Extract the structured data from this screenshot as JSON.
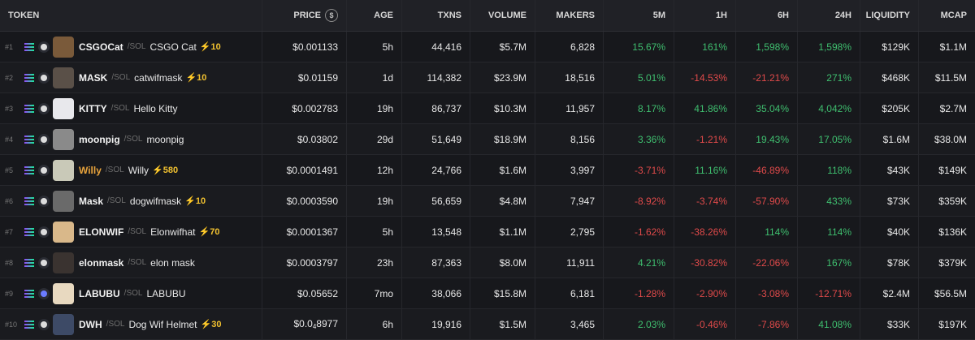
{
  "header": {
    "token": "TOKEN",
    "price": "PRICE",
    "price_icon": "dollar-icon",
    "age": "AGE",
    "txns": "TXNS",
    "volume": "VOLUME",
    "makers": "MAKERS",
    "m5": "5M",
    "h1": "1H",
    "h6": "6H",
    "h24": "24H",
    "liquidity": "LIQUIDITY",
    "mcap": "MCAP"
  },
  "rows": [
    {
      "rank": "#1",
      "symbol": "CSGOCat",
      "chain": "/SOL",
      "name": "CSGO Cat",
      "boost": "⚡10",
      "price": "$0.001133",
      "age": "5h",
      "txns": "44,416",
      "volume": "$5.7M",
      "makers": "6,828",
      "m5": "15.67%",
      "h1": "161%",
      "h6": "1,598%",
      "h24": "1,598%",
      "liquidity": "$129K",
      "mcap": "$1.1M",
      "avatar_color": "#7a5a3a"
    },
    {
      "rank": "#2",
      "symbol": "MASK",
      "chain": "/SOL",
      "name": "catwifmask",
      "boost": "⚡10",
      "price": "$0.01159",
      "age": "1d",
      "txns": "114,382",
      "volume": "$23.9M",
      "makers": "18,516",
      "m5": "5.01%",
      "h1": "-14.53%",
      "h6": "-21.21%",
      "h24": "271%",
      "liquidity": "$468K",
      "mcap": "$11.5M",
      "avatar_color": "#5a5048"
    },
    {
      "rank": "#3",
      "symbol": "KITTY",
      "chain": "/SOL",
      "name": "Hello Kitty",
      "boost": "",
      "price": "$0.002783",
      "age": "19h",
      "txns": "86,737",
      "volume": "$10.3M",
      "makers": "11,957",
      "m5": "8.17%",
      "h1": "41.86%",
      "h6": "35.04%",
      "h24": "4,042%",
      "liquidity": "$205K",
      "mcap": "$2.7M",
      "avatar_color": "#e8e8ec"
    },
    {
      "rank": "#4",
      "symbol": "moonpig",
      "chain": "/SOL",
      "name": "moonpig",
      "boost": "",
      "price": "$0.03802",
      "age": "29d",
      "txns": "51,649",
      "volume": "$18.9M",
      "makers": "8,156",
      "m5": "3.36%",
      "h1": "-1.21%",
      "h6": "19.43%",
      "h24": "17.05%",
      "liquidity": "$1.6M",
      "mcap": "$38.0M",
      "avatar_color": "#8a8a8a"
    },
    {
      "rank": "#5",
      "symbol": "Willy",
      "chain": "/SOL",
      "name": "Willy",
      "boost": "⚡580",
      "price": "$0.0001491",
      "age": "12h",
      "txns": "24,766",
      "volume": "$1.6M",
      "makers": "3,997",
      "m5": "-3.71%",
      "h1": "11.16%",
      "h6": "-46.89%",
      "h24": "118%",
      "liquidity": "$43K",
      "mcap": "$149K",
      "avatar_color": "#c9c9b8"
    },
    {
      "rank": "#6",
      "symbol": "Mask",
      "chain": "/SOL",
      "name": "dogwifmask",
      "boost": "⚡10",
      "price": "$0.0003590",
      "age": "19h",
      "txns": "56,659",
      "volume": "$4.8M",
      "makers": "7,947",
      "m5": "-8.92%",
      "h1": "-3.74%",
      "h6": "-57.90%",
      "h24": "433%",
      "liquidity": "$73K",
      "mcap": "$359K",
      "avatar_color": "#6a6a6a"
    },
    {
      "rank": "#7",
      "symbol": "ELONWIF",
      "chain": "/SOL",
      "name": "Elonwifhat",
      "boost": "⚡70",
      "price": "$0.0001367",
      "age": "5h",
      "txns": "13,548",
      "volume": "$1.1M",
      "makers": "2,795",
      "m5": "-1.62%",
      "h1": "-38.26%",
      "h6": "114%",
      "h24": "114%",
      "liquidity": "$40K",
      "mcap": "$136K",
      "avatar_color": "#d9b88a"
    },
    {
      "rank": "#8",
      "symbol": "elonmask",
      "chain": "/SOL",
      "name": "elon mask",
      "boost": "",
      "price": "$0.0003797",
      "age": "23h",
      "txns": "87,363",
      "volume": "$8.0M",
      "makers": "11,911",
      "m5": "4.21%",
      "h1": "-30.82%",
      "h6": "-22.06%",
      "h24": "167%",
      "liquidity": "$78K",
      "mcap": "$379K",
      "avatar_color": "#3a3330"
    },
    {
      "rank": "#9",
      "symbol": "LABUBU",
      "chain": "/SOL",
      "name": "LABUBU",
      "boost": "",
      "price": "$0.05652",
      "age": "7mo",
      "txns": "38,066",
      "volume": "$15.8M",
      "makers": "6,181",
      "m5": "-1.28%",
      "h1": "-2.90%",
      "h6": "-3.08%",
      "h24": "-12.71%",
      "liquidity": "$2.4M",
      "mcap": "$56.5M",
      "avatar_color": "#e8d9c0"
    },
    {
      "rank": "#10",
      "symbol": "DWH",
      "chain": "/SOL",
      "name": "Dog Wif Helmet",
      "boost": "⚡30",
      "price_a": "$0.0",
      "price_sub": "4",
      "price_b": "8977",
      "age": "6h",
      "txns": "19,916",
      "volume": "$1.5M",
      "makers": "3,465",
      "m5": "2.03%",
      "h1": "-0.46%",
      "h6": "-7.86%",
      "h24": "41.08%",
      "liquidity": "$33K",
      "mcap": "$197K",
      "avatar_color": "#3d4a66"
    }
  ],
  "colors": {
    "positive": "#3fbf6f",
    "negative": "#e04a4a",
    "boost": "#f2c230",
    "highlight_symbol": "#e7a33c"
  }
}
